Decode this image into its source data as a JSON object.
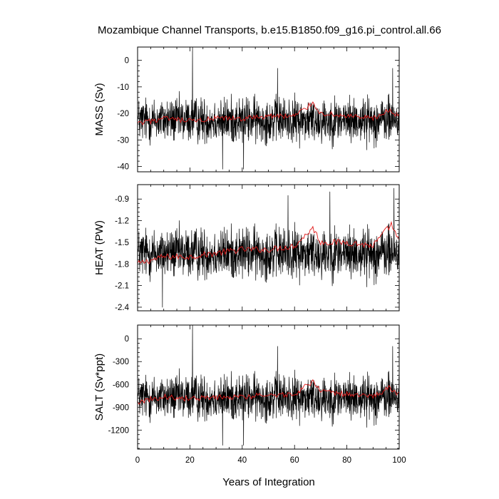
{
  "title": "Mozambique Channel Transports, b.e15.B1850.f09_g16.pi_control.all.66",
  "xlabel": "Years of Integration",
  "colors": {
    "raw": "#000000",
    "smooth": "#e01a1a"
  },
  "chart_data": [
    {
      "type": "line",
      "ylabel": "MASS (Sv)",
      "xlim": [
        0,
        100
      ],
      "ylim": [
        -42,
        5
      ],
      "xticks": [
        "0",
        "20",
        "40",
        "60",
        "80",
        "100"
      ],
      "yticks": [
        0,
        -10,
        -20,
        -30,
        -40
      ],
      "ytick_labels": [
        "0",
        "-10",
        "-20",
        "-30",
        "-40"
      ],
      "series": [
        {
          "style": "raw monthly",
          "baseline": -22.5,
          "amplitude": 6,
          "extremes": [
            [
              21,
              5
            ],
            [
              32.5,
              -41
            ],
            [
              40.5,
              -41
            ],
            [
              53.5,
              -3
            ],
            [
              97.5,
              -3
            ]
          ]
        },
        {
          "style": "smoothed",
          "values_at_x": [
            [
              0,
              -24
            ],
            [
              10,
              -22
            ],
            [
              20,
              -23
            ],
            [
              30,
              -22
            ],
            [
              40,
              -22
            ],
            [
              50,
              -21
            ],
            [
              60,
              -21
            ],
            [
              67,
              -16
            ],
            [
              70,
              -20
            ],
            [
              80,
              -21
            ],
            [
              90,
              -22
            ],
            [
              96,
              -19
            ],
            [
              100,
              -21
            ]
          ]
        }
      ]
    },
    {
      "type": "line",
      "ylabel": "HEAT (PW)",
      "xlim": [
        0,
        100
      ],
      "ylim": [
        -2.45,
        -0.7
      ],
      "xticks": [
        "0",
        "20",
        "40",
        "60",
        "80",
        "100"
      ],
      "yticks": [
        -0.9,
        -1.2,
        -1.5,
        -1.8,
        -2.1,
        -2.4
      ],
      "ytick_labels": [
        "-0.9",
        "-1.2",
        "-1.5",
        "-1.8",
        "-2.1",
        "-2.4"
      ],
      "series": [
        {
          "style": "raw monthly",
          "baseline": -1.65,
          "amplitude": 0.25,
          "extremes": [
            [
              9.5,
              -2.4
            ],
            [
              57.5,
              -0.85
            ],
            [
              73.5,
              -0.8
            ],
            [
              98,
              -0.75
            ]
          ]
        },
        {
          "style": "smoothed",
          "values_at_x": [
            [
              0,
              -1.8
            ],
            [
              10,
              -1.7
            ],
            [
              20,
              -1.7
            ],
            [
              30,
              -1.65
            ],
            [
              40,
              -1.6
            ],
            [
              50,
              -1.6
            ],
            [
              60,
              -1.55
            ],
            [
              67,
              -1.3
            ],
            [
              70,
              -1.5
            ],
            [
              80,
              -1.5
            ],
            [
              90,
              -1.55
            ],
            [
              97,
              -1.25
            ],
            [
              100,
              -1.5
            ]
          ]
        }
      ]
    },
    {
      "type": "line",
      "ylabel": "SALT (Sv*ppt)",
      "xlim": [
        0,
        100
      ],
      "ylim": [
        -1450,
        180
      ],
      "xticks": [
        "0",
        "20",
        "40",
        "60",
        "80",
        "100"
      ],
      "yticks": [
        0,
        -300,
        -600,
        -900,
        -1200
      ],
      "ytick_labels": [
        "0",
        "-300",
        "-600",
        "-900",
        "-1200"
      ],
      "series": [
        {
          "style": "raw monthly",
          "baseline": -770,
          "amplitude": 210,
          "extremes": [
            [
              21,
              180
            ],
            [
              32.5,
              -1400
            ],
            [
              40.5,
              -1400
            ],
            [
              53.5,
              -100
            ],
            [
              97.5,
              -100
            ]
          ]
        },
        {
          "style": "smoothed",
          "values_at_x": [
            [
              0,
              -830
            ],
            [
              10,
              -760
            ],
            [
              20,
              -790
            ],
            [
              30,
              -770
            ],
            [
              40,
              -760
            ],
            [
              50,
              -740
            ],
            [
              60,
              -730
            ],
            [
              67,
              -560
            ],
            [
              70,
              -700
            ],
            [
              80,
              -730
            ],
            [
              90,
              -760
            ],
            [
              96,
              -650
            ],
            [
              100,
              -720
            ]
          ]
        }
      ]
    }
  ]
}
